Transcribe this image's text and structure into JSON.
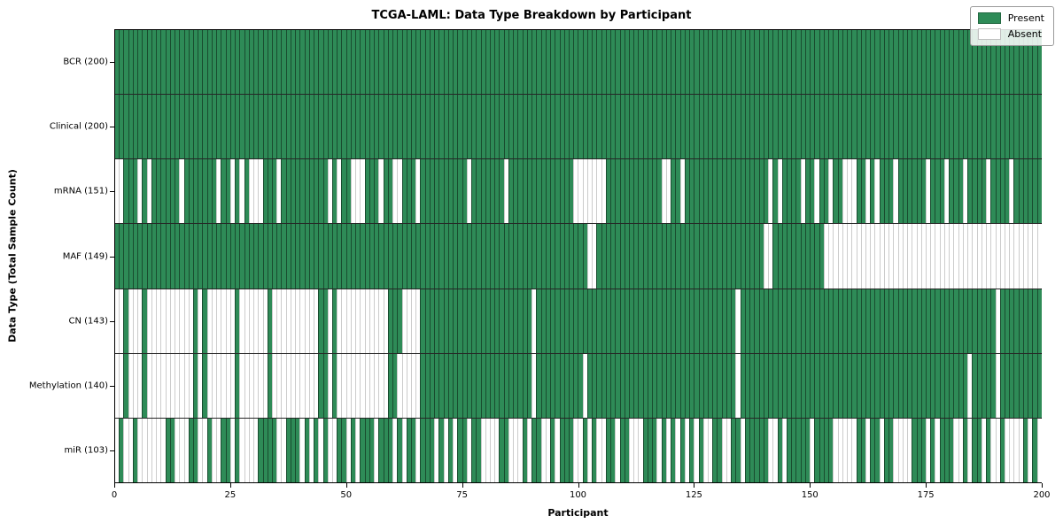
{
  "title": "TCGA-LAML: Data Type Breakdown by Participant",
  "x_axis_label": "Participant",
  "y_axis_label": "Data Type (Total Sample Count)",
  "legend": {
    "present_label": "Present",
    "absent_label": "Absent",
    "position": "upper right"
  },
  "colors": {
    "present": "#2e8b57",
    "absent": "#ffffff",
    "cell_edge_on_present": "rgba(0,0,0,0.45)",
    "cell_edge_on_absent": "rgba(0,0,0,0.20)",
    "row_divider": "rgba(0,0,0,0.85)"
  },
  "chart_data": {
    "type": "heatmap",
    "subtype": "presence-absence-matrix",
    "n_participants": 200,
    "x_range": [
      0,
      200
    ],
    "x_ticks": [
      0,
      25,
      50,
      75,
      100,
      125,
      150,
      175,
      200
    ],
    "grid": false,
    "legend_position": "upper right",
    "value_encoding": {
      "present": 1,
      "absent": 0
    },
    "rows": [
      {
        "label": "BCR (200)",
        "data_type": "BCR",
        "present_count": 200,
        "absent": []
      },
      {
        "label": "Clinical (200)",
        "data_type": "Clinical",
        "present_count": 200,
        "absent": []
      },
      {
        "label": "mRNA (151)",
        "data_type": "mRNA",
        "present_count": 151,
        "absent": [
          [
            0,
            1
          ],
          5,
          7,
          14,
          22,
          25,
          27,
          [
            29,
            31
          ],
          35,
          46,
          48,
          [
            51,
            53
          ],
          57,
          [
            60,
            61
          ],
          65,
          76,
          84,
          [
            99,
            105
          ],
          [
            118,
            119
          ],
          122,
          141,
          143,
          148,
          151,
          154,
          [
            157,
            159
          ],
          162,
          164,
          168,
          175,
          179,
          183,
          188,
          193
        ]
      },
      {
        "label": "MAF (149)",
        "data_type": "MAF",
        "present_count": 149,
        "absent": [
          [
            102,
            103
          ],
          [
            140,
            141
          ],
          [
            153,
            199
          ]
        ]
      },
      {
        "label": "CN (143)",
        "data_type": "CN",
        "present_count": 143,
        "absent": [
          [
            0,
            1
          ],
          [
            3,
            5
          ],
          [
            7,
            16
          ],
          18,
          [
            20,
            25
          ],
          [
            27,
            32
          ],
          [
            34,
            43
          ],
          46,
          [
            48,
            58
          ],
          [
            62,
            65
          ],
          90,
          134,
          190
        ]
      },
      {
        "label": "Methylation (140)",
        "data_type": "Methylation",
        "present_count": 140,
        "absent": [
          [
            0,
            1
          ],
          [
            3,
            5
          ],
          [
            7,
            16
          ],
          18,
          [
            20,
            25
          ],
          [
            27,
            32
          ],
          [
            34,
            43
          ],
          46,
          [
            48,
            58
          ],
          [
            61,
            65
          ],
          90,
          101,
          134,
          184,
          190
        ]
      },
      {
        "label": "miR (103)",
        "data_type": "miR",
        "present_count": 103,
        "absent": [
          0,
          [
            2,
            3
          ],
          [
            5,
            10
          ],
          [
            13,
            15
          ],
          [
            18,
            19
          ],
          [
            21,
            22
          ],
          25,
          [
            27,
            30
          ],
          [
            35,
            36
          ],
          40,
          42,
          44,
          [
            46,
            47
          ],
          50,
          52,
          56,
          60,
          62,
          65,
          69,
          71,
          73,
          76,
          [
            79,
            82
          ],
          [
            85,
            87
          ],
          89,
          [
            92,
            93
          ],
          95,
          [
            99,
            100
          ],
          102,
          [
            104,
            105
          ],
          108,
          [
            111,
            113
          ],
          117,
          119,
          121,
          123,
          125,
          [
            127,
            128
          ],
          [
            131,
            132
          ],
          135,
          [
            141,
            142
          ],
          144,
          150,
          [
            155,
            159
          ],
          162,
          165,
          [
            168,
            171
          ],
          175,
          177,
          [
            181,
            182
          ],
          184,
          187,
          [
            189,
            190
          ],
          [
            192,
            195
          ],
          197,
          199
        ]
      }
    ]
  }
}
